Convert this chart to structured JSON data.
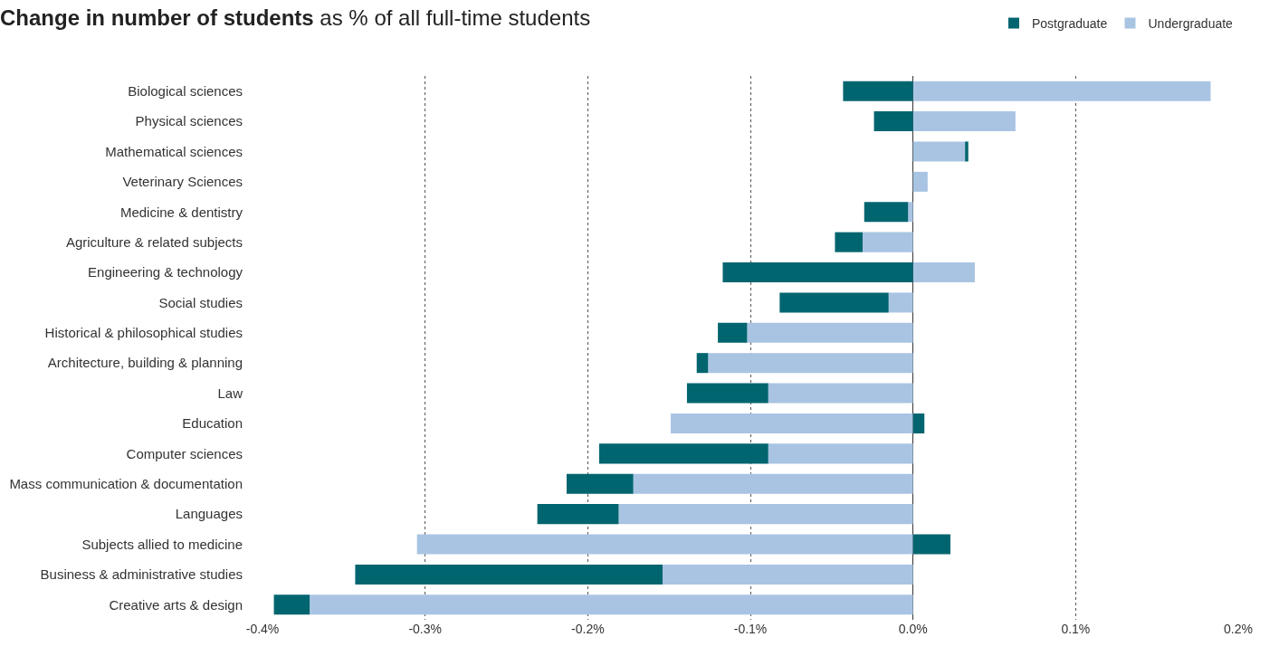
{
  "chart_data": {
    "type": "bar",
    "orientation": "horizontal",
    "stacked": true,
    "title": "Change in number of students",
    "subtitle": "as % of all full-time students",
    "categories": [
      "Biological sciences",
      "Physical sciences",
      "Mathematical sciences",
      "Veterinary Sciences",
      "Medicine & dentistry",
      "Agriculture & related subjects",
      "Engineering & technology",
      "Social studies",
      "Historical & philosophical studies",
      "Architecture, building & planning",
      "Law",
      "Education",
      "Computer sciences",
      "Mass communication & documentation",
      "Languages",
      "Subjects allied to medicine",
      "Business & administrative studies",
      "Creative arts & design"
    ],
    "series": [
      {
        "name": "Undergraduate",
        "color": "#a9c4e3",
        "values": [
          0.183,
          0.063,
          0.032,
          0.009,
          -0.003,
          -0.031,
          0.038,
          -0.015,
          -0.102,
          -0.126,
          -0.089,
          -0.149,
          -0.089,
          -0.172,
          -0.181,
          -0.305,
          -0.154,
          -0.371
        ]
      },
      {
        "name": "Postgraduate",
        "color": "#00656f",
        "values": [
          -0.043,
          -0.024,
          0.002,
          0,
          -0.027,
          -0.017,
          -0.117,
          -0.067,
          -0.018,
          -0.007,
          -0.05,
          0.007,
          -0.104,
          -0.041,
          -0.05,
          0.023,
          -0.189,
          -0.022
        ]
      }
    ],
    "xlim": [
      -0.4,
      0.2
    ],
    "xticks": [
      {
        "value": -0.4,
        "label": "-0.4%"
      },
      {
        "value": -0.3,
        "label": "-0.3%"
      },
      {
        "value": -0.2,
        "label": "-0.2%"
      },
      {
        "value": -0.1,
        "label": "-0.1%"
      },
      {
        "value": 0,
        "label": "0.0%"
      },
      {
        "value": 0.1,
        "label": "0.1%"
      },
      {
        "value": 0.2,
        "label": "0.2%"
      }
    ],
    "grid": "x",
    "legend": "top right"
  }
}
